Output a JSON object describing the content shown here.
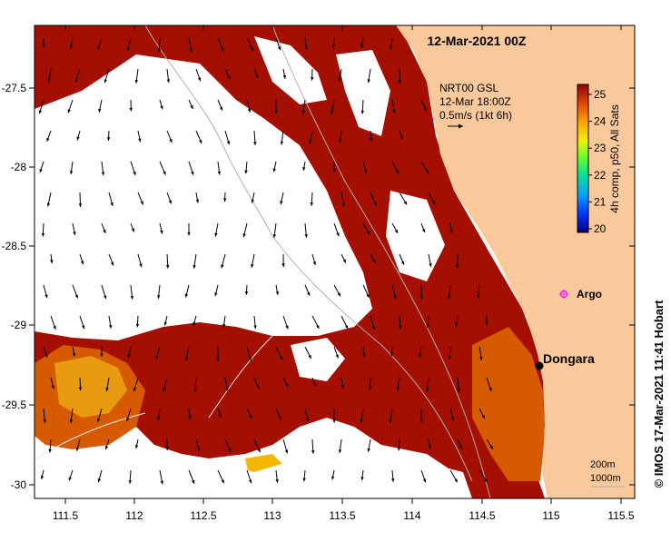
{
  "title": "12-Mar-2021 00Z",
  "current_legend": {
    "line1": "NRT00 GSL",
    "line2": "12-Mar 18:00Z",
    "line3": "0.5m/s (1kt 6h)"
  },
  "colorbar": {
    "label": "4h comp, p50, All Sats",
    "ticks": [
      "25",
      "24",
      "23",
      "22",
      "21",
      "20"
    ],
    "min": 20,
    "max": 25
  },
  "places": {
    "dongara": "Dongara",
    "argo": "Argo"
  },
  "contours": {
    "c200": "200m",
    "c1000": "1000m"
  },
  "credit": "© IMOS 17-Mar-2021 11:41 Hobart",
  "x_ticks": [
    "111.5",
    "112",
    "112.5",
    "113",
    "113.5",
    "114",
    "114.5",
    "115",
    "115.5"
  ],
  "y_ticks": [
    "-27.5",
    "-28",
    "-28.5",
    "-29",
    "-29.5",
    "-30"
  ],
  "colors": {
    "land": "#f9c89b",
    "sst_high": "#a50f00",
    "sst_mid": "#d65a00",
    "sst_low": "#e89a10",
    "sst_warm": "#f2b800",
    "argo": "#ee22ee"
  }
}
